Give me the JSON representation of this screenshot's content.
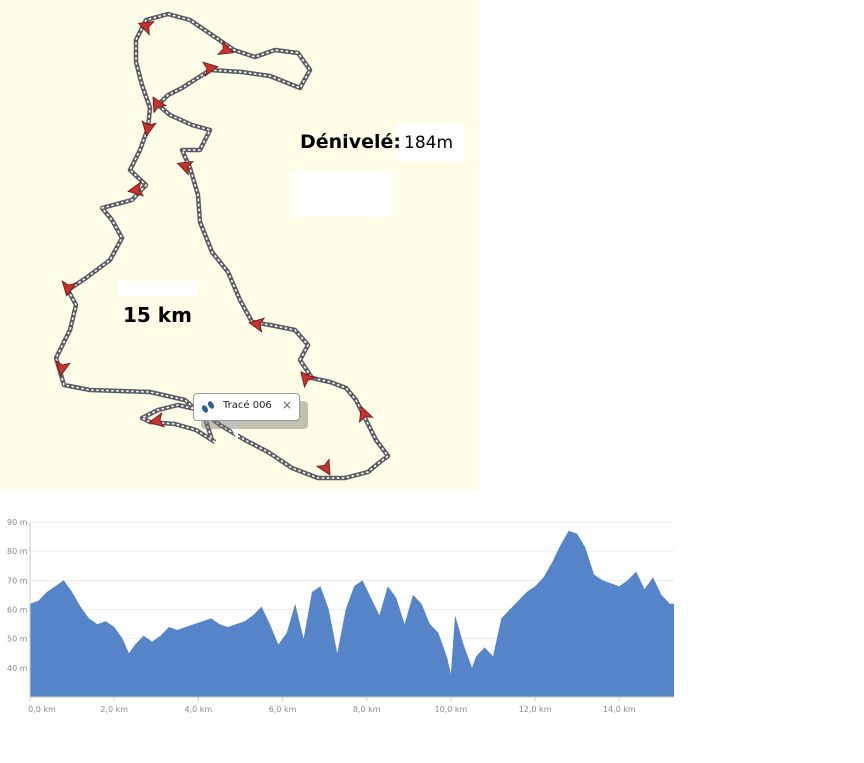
{
  "map": {
    "elevation_gain_label": "Dénivelé:",
    "elevation_gain_value": "184m",
    "distance_label": "15 km",
    "popup": {
      "title": "Tracé 006",
      "close_symbol": "×"
    },
    "colors": {
      "background": "#fefde8",
      "track": "#5a5a62",
      "arrow": "#c8312c"
    }
  },
  "chart_data": {
    "type": "area",
    "title": "",
    "xlabel": "",
    "ylabel": "",
    "x_unit": "km",
    "y_unit": "m",
    "xlim": [
      0,
      15.3
    ],
    "ylim": [
      30,
      90
    ],
    "x_ticks": [
      {
        "value": 0,
        "label": "0,0 km"
      },
      {
        "value": 2,
        "label": "2,0 km"
      },
      {
        "value": 4,
        "label": "4,0 km"
      },
      {
        "value": 6,
        "label": "6,0 km"
      },
      {
        "value": 8,
        "label": "8,0 km"
      },
      {
        "value": 10,
        "label": "10,0 km"
      },
      {
        "value": 12,
        "label": "12,0 km"
      },
      {
        "value": 14,
        "label": "14,0 km"
      }
    ],
    "y_ticks": [
      {
        "value": 40,
        "label": "40 m"
      },
      {
        "value": 50,
        "label": "50 m"
      },
      {
        "value": 60,
        "label": "60 m"
      },
      {
        "value": 70,
        "label": "70 m"
      },
      {
        "value": 80,
        "label": "80 m"
      },
      {
        "value": 90,
        "label": "90 m"
      }
    ],
    "color": "#5585c8",
    "series": [
      {
        "x": [
          0,
          0.2,
          0.4,
          0.6,
          0.8,
          1.0,
          1.2,
          1.4,
          1.6,
          1.8,
          2.0,
          2.2,
          2.35,
          2.5,
          2.7,
          2.9,
          3.1,
          3.3,
          3.5,
          3.7,
          3.9,
          4.1,
          4.3,
          4.5,
          4.7,
          4.9,
          5.1,
          5.3,
          5.5,
          5.7,
          5.9,
          6.1,
          6.3,
          6.5,
          6.7,
          6.9,
          7.1,
          7.3,
          7.5,
          7.7,
          7.9,
          8.1,
          8.3,
          8.5,
          8.7,
          8.9,
          9.1,
          9.3,
          9.5,
          9.7,
          9.9,
          10.0,
          10.1,
          10.3,
          10.5,
          10.6,
          10.8,
          11.0,
          11.2,
          11.4,
          11.6,
          11.8,
          12.0,
          12.2,
          12.4,
          12.6,
          12.8,
          13.0,
          13.2,
          13.4,
          13.6,
          13.8,
          14.0,
          14.2,
          14.4,
          14.6,
          14.8,
          15.0,
          15.2,
          15.3
        ],
        "y": [
          62,
          63,
          66,
          68,
          70,
          66,
          61,
          57,
          55,
          56,
          54,
          50,
          45,
          48,
          51,
          49,
          51,
          54,
          53,
          54,
          55,
          56,
          57,
          55,
          54,
          55,
          56,
          58,
          61,
          55,
          48,
          52,
          62,
          50,
          66,
          68,
          60,
          45,
          60,
          68,
          70,
          64,
          58,
          68,
          64,
          55,
          65,
          62,
          55,
          52,
          44,
          38,
          58,
          48,
          40,
          44,
          47,
          44,
          57,
          60,
          63,
          66,
          68,
          71,
          76,
          82,
          87,
          86,
          81,
          72,
          70,
          69,
          68,
          70,
          73,
          67,
          71,
          65,
          62,
          62
        ]
      }
    ]
  }
}
